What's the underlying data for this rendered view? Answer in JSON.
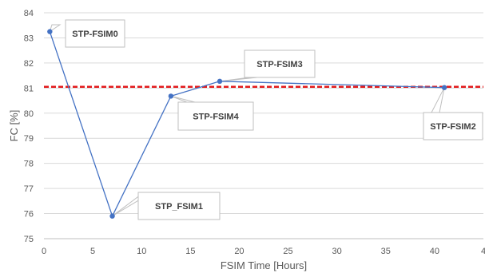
{
  "chart_data": {
    "type": "line",
    "xlabel": "FSIM Time [Hours]",
    "ylabel": "FC [%]",
    "xlim": [
      0,
      45
    ],
    "ylim": [
      75,
      84
    ],
    "xticks": [
      "0",
      "5",
      "10",
      "15",
      "20",
      "25",
      "30",
      "35",
      "40",
      "4"
    ],
    "yticks": [
      "75",
      "76",
      "77",
      "78",
      "79",
      "80",
      "81",
      "82",
      "83",
      "84"
    ],
    "grid": "horizontal",
    "series": [
      {
        "color": "#4472c4",
        "points": [
          {
            "x": 0.6,
            "y": 83.25,
            "label": "STP-FSIM0"
          },
          {
            "x": 7.0,
            "y": 75.9,
            "label": "STP_FSIM1"
          },
          {
            "x": 13.0,
            "y": 80.68,
            "label": "STP-FSIM4"
          },
          {
            "x": 18.0,
            "y": 81.27,
            "label": "STP-FSIM3"
          },
          {
            "x": 41.0,
            "y": 81.02,
            "label": "STP-FSIM2"
          }
        ]
      }
    ],
    "reference_line": {
      "y": 81.05,
      "color": "#e31a1c",
      "style": "dashed"
    }
  }
}
